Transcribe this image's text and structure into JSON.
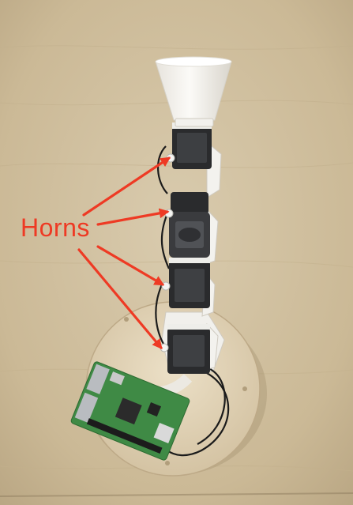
{
  "annotation": {
    "label": "Horns",
    "color": "#ee3a24",
    "arrow_count": 4
  },
  "scene": {
    "background_color": "#cfbfa0",
    "lampshade_color": "#f4f2ee",
    "base_color": "#e2d3b6",
    "board_color": "#3f8a45"
  }
}
